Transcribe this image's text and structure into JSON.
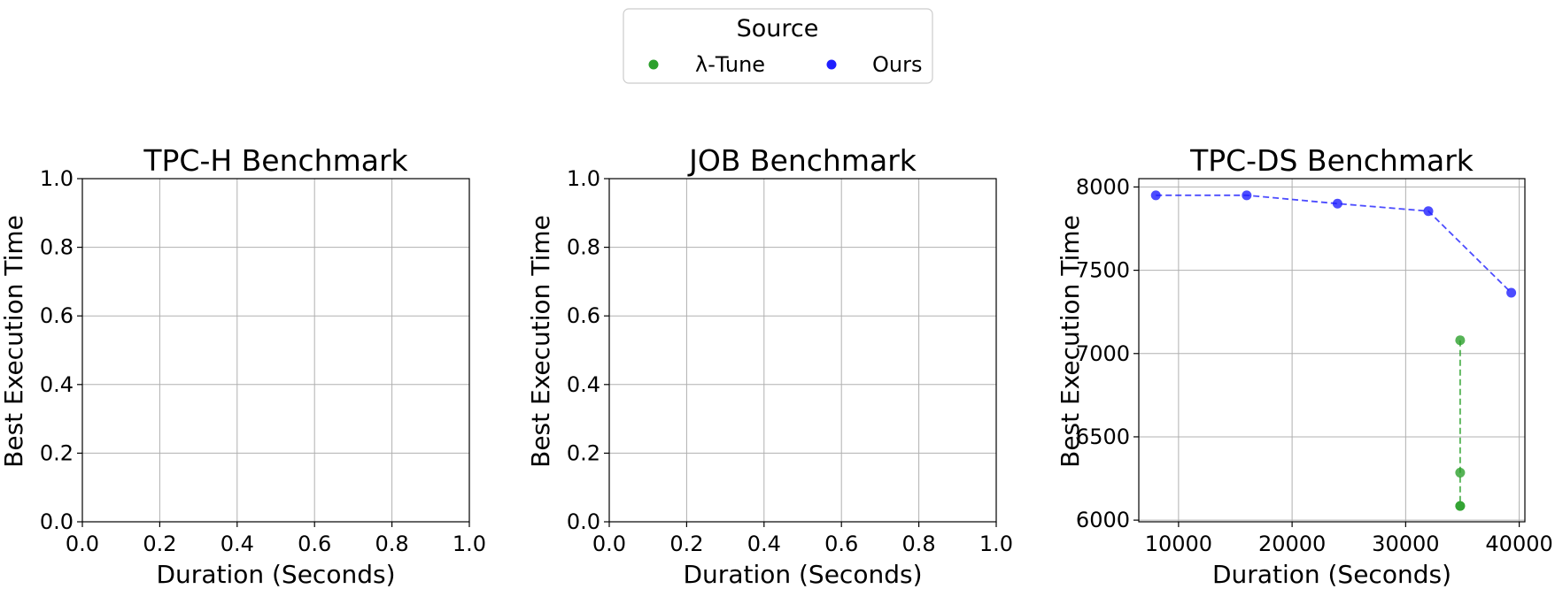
{
  "legend": {
    "title": "Source",
    "placement": "top-center",
    "entries": [
      {
        "label": "λ-Tune",
        "color": "#2ca02c"
      },
      {
        "label": "Ours",
        "color": "#1f1fff"
      }
    ]
  },
  "chart_data": [
    {
      "type": "scatter",
      "title": "TPC-H Benchmark",
      "xlabel": "Duration (Seconds)",
      "ylabel": "Best Execution Time",
      "xlim": [
        0,
        1
      ],
      "ylim": [
        0,
        1
      ],
      "xticks": [
        "0.0",
        "0.2",
        "0.4",
        "0.6",
        "0.8",
        "1.0"
      ],
      "yticks": [
        "0.0",
        "0.2",
        "0.4",
        "0.6",
        "0.8",
        "1.0"
      ],
      "grid": true,
      "series": []
    },
    {
      "type": "scatter",
      "title": "JOB Benchmark",
      "xlabel": "Duration (Seconds)",
      "ylabel": "Best Execution Time",
      "xlim": [
        0,
        1
      ],
      "ylim": [
        0,
        1
      ],
      "xticks": [
        "0.0",
        "0.2",
        "0.4",
        "0.6",
        "0.8",
        "1.0"
      ],
      "yticks": [
        "0.0",
        "0.2",
        "0.4",
        "0.6",
        "0.8",
        "1.0"
      ],
      "grid": true,
      "series": []
    },
    {
      "type": "line",
      "title": "TPC-DS Benchmark",
      "xlabel": "Duration (Seconds)",
      "ylabel": "Best Execution Time",
      "xlim": [
        6500,
        40500
      ],
      "ylim": [
        5990,
        8050
      ],
      "xticks": [
        "10000",
        "20000",
        "30000",
        "40000"
      ],
      "yticks": [
        "6000",
        "6500",
        "7000",
        "7500",
        "8000"
      ],
      "grid": true,
      "series": [
        {
          "name": "λ-Tune",
          "color": "#2ca02c",
          "style": "dashed",
          "points": [
            {
              "x": 34800,
              "y": 7080
            },
            {
              "x": 34800,
              "y": 6285
            },
            {
              "x": 34800,
              "y": 6085
            },
            {
              "x": 34800,
              "y": 6085
            }
          ]
        },
        {
          "name": "Ours",
          "color": "#1f1fff",
          "style": "dashed",
          "points": [
            {
              "x": 8000,
              "y": 7950
            },
            {
              "x": 16000,
              "y": 7950
            },
            {
              "x": 24000,
              "y": 7900
            },
            {
              "x": 32000,
              "y": 7855
            },
            {
              "x": 39300,
              "y": 7365
            }
          ]
        }
      ]
    }
  ]
}
